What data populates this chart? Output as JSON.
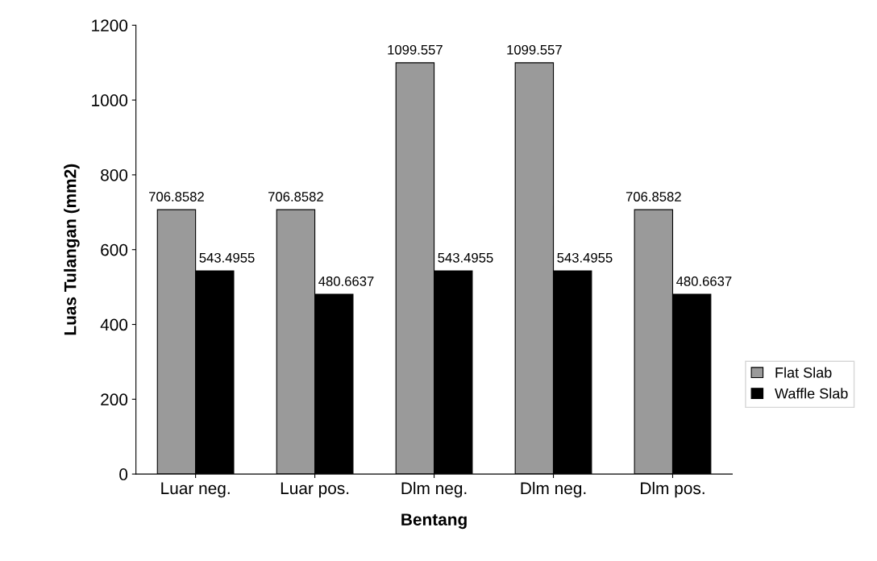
{
  "chart_data": {
    "type": "bar",
    "xlabel": "Bentang",
    "ylabel": "Luas Tulangan (mm2)",
    "categories": [
      "Luar neg.",
      "Luar pos.",
      "Dlm neg.",
      "Dlm neg.",
      "Dlm pos."
    ],
    "series": [
      {
        "name": "Flat Slab",
        "color": "#9a9a9a",
        "values": [
          706.8582,
          706.8582,
          1099.557,
          1099.557,
          706.8582
        ]
      },
      {
        "name": "Waffle Slab",
        "color": "#000000",
        "values": [
          543.4955,
          480.6637,
          543.4955,
          543.4955,
          480.6637
        ]
      }
    ],
    "ylim": [
      0,
      1200
    ],
    "yticks": [
      0,
      200,
      400,
      600,
      800,
      1000,
      1200
    ],
    "grid": false,
    "legend": "right",
    "data_labels": true
  }
}
